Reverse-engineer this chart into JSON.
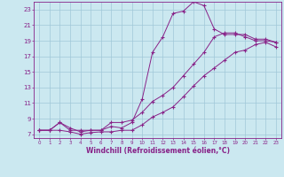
{
  "xlabel": "Windchill (Refroidissement éolien,°C)",
  "background_color": "#cbe8f0",
  "grid_color": "#a0c8d8",
  "line_color": "#882288",
  "x_ticks": [
    0,
    1,
    2,
    3,
    4,
    5,
    6,
    7,
    8,
    9,
    10,
    11,
    12,
    13,
    14,
    15,
    16,
    17,
    18,
    19,
    20,
    21,
    22,
    23
  ],
  "y_ticks": [
    7,
    9,
    11,
    13,
    15,
    17,
    19,
    21,
    23
  ],
  "xlim": [
    -0.5,
    23.5
  ],
  "ylim": [
    6.5,
    24.0
  ],
  "line1_x": [
    0,
    1,
    2,
    3,
    4,
    5,
    6,
    7,
    8,
    9,
    10,
    11,
    12,
    13,
    14,
    15,
    16,
    17,
    18,
    19,
    20,
    21,
    22,
    23
  ],
  "line1_y": [
    7.5,
    7.5,
    7.5,
    7.3,
    7.0,
    7.2,
    7.3,
    7.3,
    7.5,
    7.5,
    8.2,
    9.2,
    9.8,
    10.5,
    11.8,
    13.2,
    14.5,
    15.5,
    16.5,
    17.5,
    17.8,
    18.5,
    18.8,
    18.2
  ],
  "line2_x": [
    0,
    1,
    2,
    3,
    4,
    5,
    6,
    7,
    8,
    9,
    10,
    11,
    12,
    13,
    14,
    15,
    16,
    17,
    18,
    19,
    20,
    21,
    22,
    23
  ],
  "line2_y": [
    7.5,
    7.5,
    8.5,
    7.8,
    7.3,
    7.5,
    7.5,
    8.5,
    8.5,
    8.8,
    9.8,
    11.2,
    12.0,
    13.0,
    14.5,
    16.0,
    17.5,
    19.5,
    20.0,
    20.0,
    19.5,
    19.0,
    19.0,
    18.8
  ],
  "line3_x": [
    0,
    1,
    2,
    3,
    4,
    5,
    6,
    7,
    8,
    9,
    10,
    11,
    12,
    13,
    14,
    15,
    16,
    17,
    18,
    19,
    20,
    21,
    22,
    23
  ],
  "line3_y": [
    7.5,
    7.5,
    8.5,
    7.5,
    7.5,
    7.5,
    7.5,
    8.0,
    7.8,
    8.5,
    11.5,
    17.5,
    19.5,
    22.5,
    22.8,
    24.0,
    23.5,
    20.5,
    19.8,
    19.8,
    19.8,
    19.2,
    19.2,
    18.8
  ]
}
